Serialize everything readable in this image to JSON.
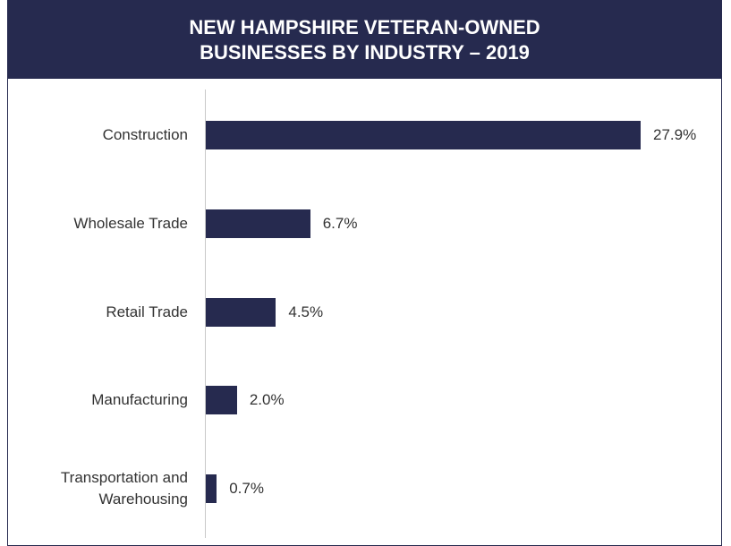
{
  "chart_data": {
    "type": "bar",
    "orientation": "horizontal",
    "title": [
      "NEW HAMPSHIRE VETERAN-OWNED",
      "BUSINESSES BY INDUSTRY – 2019"
    ],
    "categories": [
      "Construction",
      "Wholesale Trade",
      "Retail Trade",
      "Manufacturing",
      "Transportation and Warehousing"
    ],
    "values": [
      27.9,
      6.7,
      4.5,
      2.0,
      0.7
    ],
    "value_labels": [
      "27.9%",
      "6.7%",
      "4.5%",
      "2.0%",
      "0.7%"
    ],
    "color": "#262a4f"
  }
}
